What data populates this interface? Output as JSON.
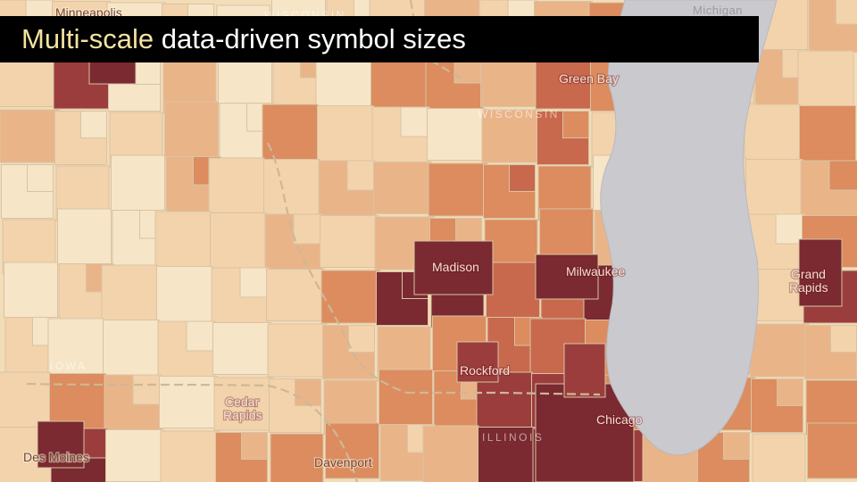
{
  "title": {
    "highlight": "Multi-scale",
    "rest": " data-driven symbol sizes"
  },
  "map": {
    "colors": {
      "class1": "#f6e6c7",
      "class2": "#f2d3ac",
      "class3": "#eab489",
      "class4": "#dc8c5e",
      "class5": "#c8694d",
      "class6": "#9b3d3d",
      "class7": "#7a2a30",
      "lake": "#c9c9ce"
    },
    "cities": [
      {
        "name": "Minneapolis"
      },
      {
        "name": "Green Bay"
      },
      {
        "name": "Madison"
      },
      {
        "name": "Milwaukee"
      },
      {
        "name": "Grand"
      },
      {
        "name": "Rapids"
      },
      {
        "name": "Rockford"
      },
      {
        "name": "Cedar"
      },
      {
        "name": "Rapids"
      },
      {
        "name": "Chicago"
      },
      {
        "name": "Des Moines"
      },
      {
        "name": "Davenport"
      }
    ],
    "states": [
      {
        "name": "WISCONSIN"
      },
      {
        "name": "WISCONSIN"
      },
      {
        "name": "IOWA"
      },
      {
        "name": "ILLINOIS"
      },
      {
        "name": "Michigan"
      }
    ]
  }
}
